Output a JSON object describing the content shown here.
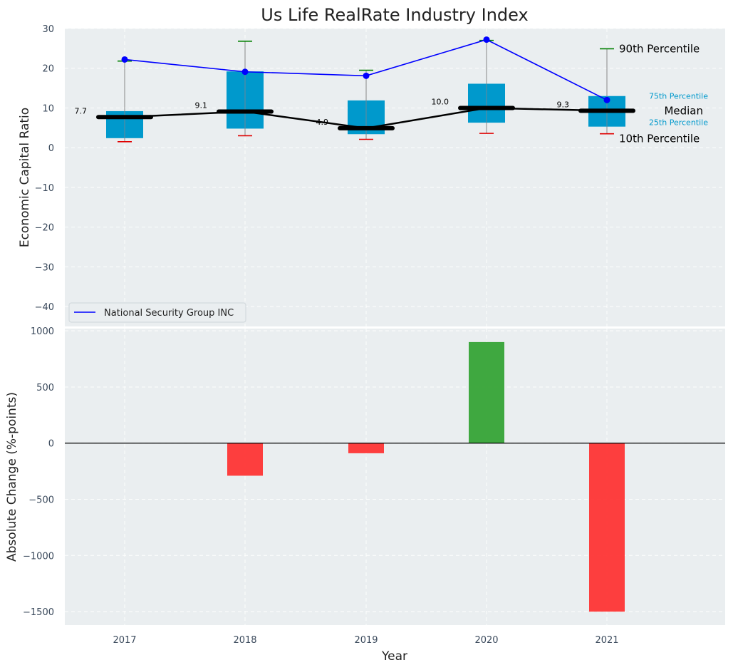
{
  "chart_data": [
    {
      "type": "box",
      "title": "Us Life RealRate Industry Index",
      "ylabel": "Economic Capital Ratio",
      "ylim": [
        -45,
        30
      ],
      "yticks": [
        30,
        20,
        10,
        0,
        -10,
        -20,
        -30,
        -40
      ],
      "categories": [
        "2017",
        "2018",
        "2019",
        "2020",
        "2021"
      ],
      "boxes": [
        {
          "year": "2017",
          "p10": 1.5,
          "p25": 2.4,
          "median": 7.7,
          "p75": 9.2,
          "p90": 21.8,
          "label": "7.7"
        },
        {
          "year": "2018",
          "p10": 3.0,
          "p25": 4.8,
          "median": 9.1,
          "p75": 19.2,
          "p90": 26.8,
          "label": "9.1"
        },
        {
          "year": "2019",
          "p10": 2.1,
          "p25": 3.4,
          "median": 4.9,
          "p75": 11.9,
          "p90": 19.5,
          "label": "4.9"
        },
        {
          "year": "2020",
          "p10": 3.6,
          "p25": 6.3,
          "median": 10.0,
          "p75": 16.1,
          "p90": 27.0,
          "label": "10.0"
        },
        {
          "year": "2021",
          "p10": 3.5,
          "p25": 5.3,
          "median": 9.3,
          "p75": 13.0,
          "p90": 24.9,
          "label": "9.3"
        }
      ],
      "series": [
        {
          "name": "National Security Group INC",
          "color": "#0000ff",
          "values": [
            22.2,
            19.1,
            18.1,
            27.2,
            12.0
          ]
        }
      ],
      "annotations": {
        "p90": "90th Percentile",
        "p75": "75th Percentile",
        "median": "Median",
        "p25": "25th Percentile",
        "p10": "10th Percentile"
      },
      "legend": {
        "position": "lower-left"
      },
      "grid": true,
      "colors": {
        "box": "#0099cc",
        "median": "#000000",
        "p90_whisker": "#008000",
        "p10_whisker": "#e00000",
        "series": "#0000ff"
      }
    },
    {
      "type": "bar",
      "xlabel": "Year",
      "ylabel": "Absolute Change (%-points)",
      "ylim": [
        -1620,
        1020
      ],
      "yticks": [
        1000,
        500,
        0,
        -500,
        -1000,
        -1500
      ],
      "categories": [
        "2017",
        "2018",
        "2019",
        "2020",
        "2021"
      ],
      "values": [
        0,
        -290,
        -90,
        900,
        -1500
      ],
      "grid": true,
      "colors": {
        "positive": "#2ca02c",
        "negative": "#ff2a2a"
      }
    }
  ]
}
